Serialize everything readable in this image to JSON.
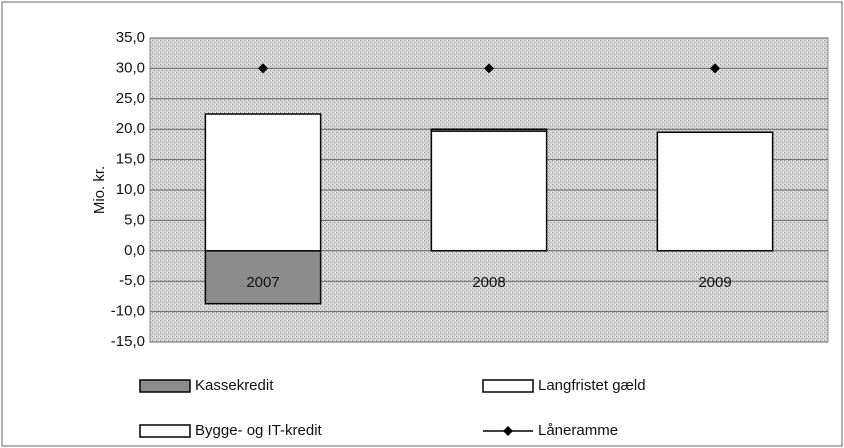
{
  "chart_data": {
    "type": "bar",
    "stacked": true,
    "ylabel": "Mio. kr.",
    "categories": [
      "2007",
      "2008",
      "2009"
    ],
    "series": [
      {
        "name": "Kassekredit",
        "color": "#8c8c8c",
        "values": [
          -8.7,
          0,
          0
        ]
      },
      {
        "name": "Langfristet gæld",
        "color": "#ffffff",
        "values": [
          22.5,
          19.7,
          19.5
        ]
      },
      {
        "name": "Bygge- og IT-kredit",
        "color": "#ffffff",
        "values": [
          0,
          0.3,
          0
        ]
      },
      {
        "name": "Låneramme",
        "type": "line",
        "color": "#000000",
        "values": [
          30,
          30,
          30
        ]
      }
    ],
    "ylim": [
      -15,
      35
    ],
    "yticks": [
      {
        "value": -15,
        "label": "-15,0"
      },
      {
        "value": -10,
        "label": "-10,0"
      },
      {
        "value": -5,
        "label": "-5,0"
      },
      {
        "value": 0,
        "label": "0,0"
      },
      {
        "value": 5,
        "label": "5,0"
      },
      {
        "value": 10,
        "label": "10,0"
      },
      {
        "value": 15,
        "label": "15,0"
      },
      {
        "value": 20,
        "label": "20,0"
      },
      {
        "value": 25,
        "label": "25,0"
      },
      {
        "value": 30,
        "label": "30,0"
      },
      {
        "value": 35,
        "label": "35,0"
      }
    ],
    "grid": true,
    "legend": "bottom"
  }
}
